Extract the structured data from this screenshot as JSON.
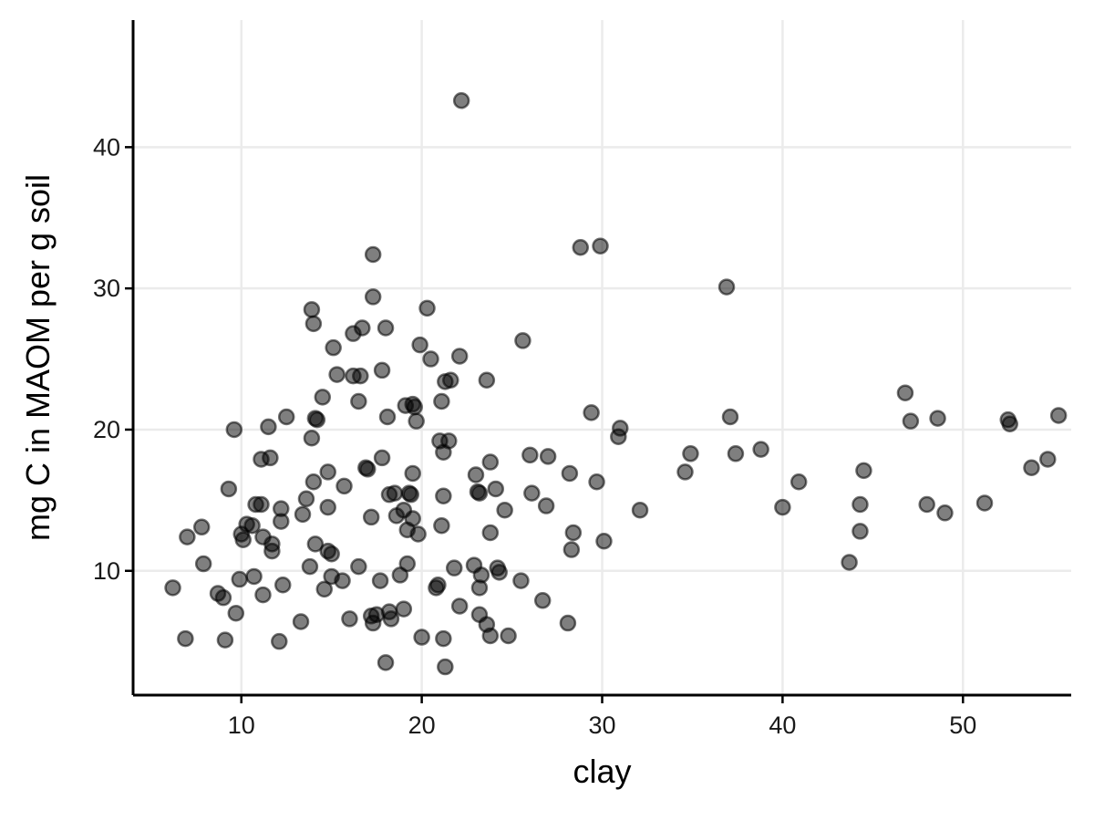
{
  "chart_data": {
    "type": "scatter",
    "title": "",
    "xlabel": "clay",
    "ylabel": "mg C in MAOM per g soil",
    "xlim": [
      4,
      56
    ],
    "ylim": [
      1.2,
      49
    ],
    "x_ticks": [
      10,
      20,
      30,
      40,
      50
    ],
    "y_ticks": [
      10,
      20,
      30,
      40
    ],
    "grid": true,
    "legend": "none",
    "marker_color": "#000000",
    "marker_alpha": 0.5,
    "points": [
      [
        6.2,
        8.8
      ],
      [
        6.9,
        5.2
      ],
      [
        7.0,
        12.4
      ],
      [
        7.8,
        13.1
      ],
      [
        7.9,
        10.5
      ],
      [
        8.7,
        8.4
      ],
      [
        9.0,
        8.1
      ],
      [
        9.1,
        5.1
      ],
      [
        9.3,
        15.8
      ],
      [
        9.6,
        20.0
      ],
      [
        9.7,
        7.0
      ],
      [
        9.9,
        9.4
      ],
      [
        10.0,
        12.6
      ],
      [
        10.1,
        12.2
      ],
      [
        10.3,
        13.3
      ],
      [
        10.6,
        13.2
      ],
      [
        10.7,
        9.6
      ],
      [
        10.8,
        14.7
      ],
      [
        11.1,
        17.9
      ],
      [
        11.1,
        14.7
      ],
      [
        11.2,
        12.4
      ],
      [
        11.2,
        8.3
      ],
      [
        11.5,
        20.2
      ],
      [
        11.6,
        18.0
      ],
      [
        11.7,
        11.9
      ],
      [
        11.7,
        11.4
      ],
      [
        12.1,
        5.0
      ],
      [
        12.2,
        13.5
      ],
      [
        12.2,
        14.4
      ],
      [
        12.3,
        9.0
      ],
      [
        12.5,
        20.9
      ],
      [
        13.3,
        6.4
      ],
      [
        13.4,
        14.0
      ],
      [
        13.6,
        15.1
      ],
      [
        13.8,
        10.3
      ],
      [
        13.9,
        19.4
      ],
      [
        13.9,
        28.5
      ],
      [
        14.0,
        27.5
      ],
      [
        14.0,
        16.3
      ],
      [
        14.1,
        11.9
      ],
      [
        14.1,
        20.8
      ],
      [
        14.2,
        20.7
      ],
      [
        14.5,
        22.3
      ],
      [
        14.6,
        8.7
      ],
      [
        14.8,
        14.5
      ],
      [
        14.8,
        17.0
      ],
      [
        14.8,
        11.4
      ],
      [
        15.0,
        11.2
      ],
      [
        15.0,
        9.6
      ],
      [
        15.1,
        25.8
      ],
      [
        15.3,
        23.9
      ],
      [
        15.6,
        9.3
      ],
      [
        15.7,
        16.0
      ],
      [
        16.0,
        6.6
      ],
      [
        16.2,
        26.8
      ],
      [
        16.2,
        23.8
      ],
      [
        16.5,
        22.0
      ],
      [
        16.5,
        10.3
      ],
      [
        16.6,
        23.8
      ],
      [
        16.7,
        27.2
      ],
      [
        16.9,
        17.3
      ],
      [
        17.0,
        17.2
      ],
      [
        17.2,
        13.8
      ],
      [
        17.2,
        6.8
      ],
      [
        17.3,
        32.4
      ],
      [
        17.3,
        29.4
      ],
      [
        17.3,
        6.3
      ],
      [
        17.5,
        6.9
      ],
      [
        17.7,
        9.3
      ],
      [
        17.8,
        24.2
      ],
      [
        17.8,
        18.0
      ],
      [
        18.0,
        3.5
      ],
      [
        18.0,
        27.2
      ],
      [
        18.1,
        20.9
      ],
      [
        18.2,
        15.4
      ],
      [
        18.2,
        7.1
      ],
      [
        18.3,
        6.6
      ],
      [
        18.5,
        15.5
      ],
      [
        18.6,
        13.9
      ],
      [
        18.8,
        9.7
      ],
      [
        19.0,
        14.3
      ],
      [
        19.0,
        7.3
      ],
      [
        19.1,
        21.7
      ],
      [
        19.2,
        10.5
      ],
      [
        19.2,
        12.9
      ],
      [
        19.3,
        15.5
      ],
      [
        19.4,
        15.4
      ],
      [
        19.5,
        16.9
      ],
      [
        19.5,
        21.8
      ],
      [
        19.5,
        13.7
      ],
      [
        19.6,
        21.6
      ],
      [
        19.7,
        20.6
      ],
      [
        19.8,
        12.6
      ],
      [
        19.9,
        26.0
      ],
      [
        20.0,
        5.3
      ],
      [
        20.3,
        28.6
      ],
      [
        20.5,
        25.0
      ],
      [
        20.8,
        8.8
      ],
      [
        20.9,
        9.0
      ],
      [
        21.0,
        19.2
      ],
      [
        21.1,
        13.2
      ],
      [
        21.1,
        22.0
      ],
      [
        21.2,
        18.4
      ],
      [
        21.2,
        15.3
      ],
      [
        21.2,
        5.2
      ],
      [
        21.3,
        23.4
      ],
      [
        21.3,
        3.2
      ],
      [
        21.5,
        19.2
      ],
      [
        21.6,
        23.5
      ],
      [
        21.8,
        10.2
      ],
      [
        22.1,
        7.5
      ],
      [
        22.1,
        25.2
      ],
      [
        22.2,
        43.3
      ],
      [
        22.9,
        10.4
      ],
      [
        23.0,
        16.8
      ],
      [
        23.1,
        15.6
      ],
      [
        23.2,
        15.5
      ],
      [
        23.2,
        8.8
      ],
      [
        23.2,
        6.9
      ],
      [
        23.3,
        9.7
      ],
      [
        23.6,
        6.2
      ],
      [
        23.6,
        23.5
      ],
      [
        23.8,
        17.7
      ],
      [
        23.8,
        5.4
      ],
      [
        23.8,
        12.7
      ],
      [
        24.1,
        15.8
      ],
      [
        24.2,
        10.2
      ],
      [
        24.3,
        9.9
      ],
      [
        24.6,
        14.3
      ],
      [
        24.8,
        5.4
      ],
      [
        25.5,
        9.3
      ],
      [
        25.6,
        26.3
      ],
      [
        26.0,
        18.2
      ],
      [
        26.1,
        15.5
      ],
      [
        26.7,
        7.9
      ],
      [
        26.9,
        14.6
      ],
      [
        27.0,
        18.1
      ],
      [
        28.1,
        6.3
      ],
      [
        28.2,
        16.9
      ],
      [
        28.3,
        11.5
      ],
      [
        28.4,
        12.7
      ],
      [
        28.8,
        32.9
      ],
      [
        29.4,
        21.2
      ],
      [
        29.7,
        16.3
      ],
      [
        29.9,
        33.0
      ],
      [
        30.1,
        12.1
      ],
      [
        30.9,
        19.5
      ],
      [
        31.0,
        20.1
      ],
      [
        32.1,
        14.3
      ],
      [
        34.6,
        17.0
      ],
      [
        34.9,
        18.3
      ],
      [
        36.9,
        30.1
      ],
      [
        37.1,
        20.9
      ],
      [
        37.4,
        18.3
      ],
      [
        38.8,
        18.6
      ],
      [
        40.0,
        14.5
      ],
      [
        40.9,
        16.3
      ],
      [
        43.7,
        10.6
      ],
      [
        44.3,
        12.8
      ],
      [
        44.3,
        14.7
      ],
      [
        44.5,
        17.1
      ],
      [
        46.8,
        22.6
      ],
      [
        47.1,
        20.6
      ],
      [
        48.0,
        14.7
      ],
      [
        48.6,
        20.8
      ],
      [
        49.0,
        14.1
      ],
      [
        51.2,
        14.8
      ],
      [
        52.5,
        20.7
      ],
      [
        52.6,
        20.4
      ],
      [
        53.8,
        17.3
      ],
      [
        54.7,
        17.9
      ],
      [
        55.3,
        21.0
      ]
    ]
  }
}
